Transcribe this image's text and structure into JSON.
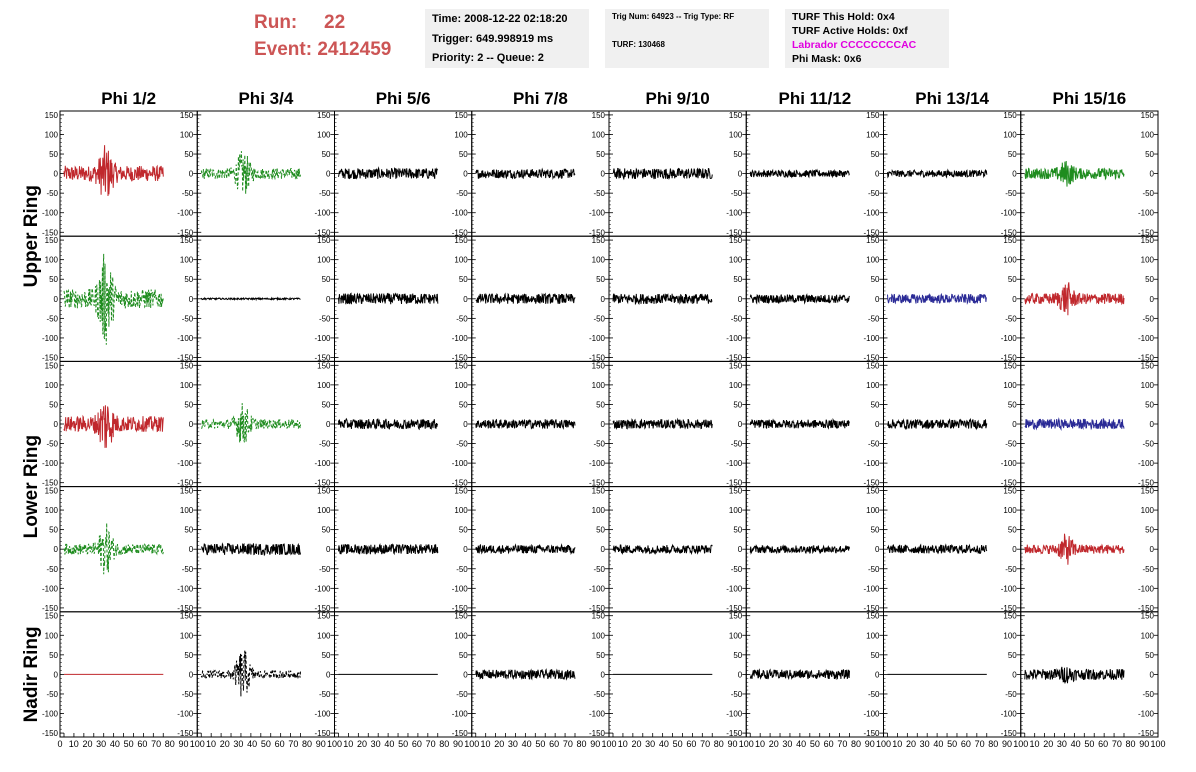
{
  "header": {
    "run_label": "Run:",
    "run_value": "22",
    "event_label": "Event:",
    "event_value": "2412459",
    "accent_color": "#cc5555"
  },
  "info1": {
    "time": "Time: 2008-12-22 02:18:20",
    "trigger": "Trigger: 649.998919 ms",
    "priority": "Priority: 2 -- Queue: 2"
  },
  "info2": {
    "trig": "Trig Num: 64923 -- Trig Type: RF",
    "turf": "TURF: 130468"
  },
  "info3": {
    "hold": "TURF This Hold: 0x4",
    "active": "TURF Active Holds: 0xf",
    "labrador": "Labrador CCCCCCCCAC",
    "mask": "Phi Mask: 0x6"
  },
  "columns": [
    "Phi 1/2",
    "Phi 3/4",
    "Phi 5/6",
    "Phi 7/8",
    "Phi 9/10",
    "Phi 11/12",
    "Phi 13/14",
    "Phi 15/16"
  ],
  "rings": [
    "Upper Ring",
    "Lower Ring",
    "Nadir Ring"
  ],
  "y_ticks": [
    "150",
    "100",
    "50",
    "0",
    "-50",
    "-100",
    "-150"
  ],
  "x_ticks_first": [
    "0",
    "10",
    "20",
    "30",
    "40",
    "50",
    "60",
    "70",
    "80",
    "90",
    "100"
  ],
  "x_ticks_other": [
    "10",
    "20",
    "30",
    "40",
    "50",
    "60",
    "70",
    "80",
    "90",
    "100"
  ],
  "colors": {
    "red": "#c0282d",
    "green": "#1e8c1e",
    "blue": "#2a2a96",
    "black": "#000000"
  },
  "chart_data": {
    "type": "line",
    "ylim": [
      -160,
      160
    ],
    "xlim": [
      0,
      100
    ],
    "panels": [
      [
        {
          "c": "red",
          "a": 20,
          "b": 55,
          "d": false
        },
        {
          "c": "green",
          "a": 14,
          "b": 48,
          "d": true
        },
        {
          "c": "black",
          "a": 14,
          "b": 0,
          "d": false
        },
        {
          "c": "black",
          "a": 12,
          "b": 0,
          "d": false
        },
        {
          "c": "black",
          "a": 14,
          "b": 0,
          "d": false
        },
        {
          "c": "black",
          "a": 9,
          "b": 0,
          "d": false
        },
        {
          "c": "black",
          "a": 9,
          "b": 0,
          "d": false
        },
        {
          "c": "green",
          "a": 14,
          "b": 22,
          "d": false
        }
      ],
      [
        {
          "c": "green",
          "a": 25,
          "b": 100,
          "d": true
        },
        {
          "c": "black",
          "a": 2,
          "b": 0,
          "d": false
        },
        {
          "c": "black",
          "a": 14,
          "b": 0,
          "d": false
        },
        {
          "c": "black",
          "a": 13,
          "b": 0,
          "d": false
        },
        {
          "c": "black",
          "a": 13,
          "b": 0,
          "d": false
        },
        {
          "c": "black",
          "a": 11,
          "b": 0,
          "d": false
        },
        {
          "c": "blue",
          "a": 12,
          "b": 0,
          "d": false
        },
        {
          "c": "red",
          "a": 14,
          "b": 32,
          "d": false
        }
      ],
      [
        {
          "c": "red",
          "a": 20,
          "b": 58,
          "d": false
        },
        {
          "c": "green",
          "a": 12,
          "b": 45,
          "d": true
        },
        {
          "c": "black",
          "a": 13,
          "b": 0,
          "d": false
        },
        {
          "c": "black",
          "a": 12,
          "b": 0,
          "d": false
        },
        {
          "c": "black",
          "a": 12,
          "b": 0,
          "d": false
        },
        {
          "c": "black",
          "a": 11,
          "b": 0,
          "d": false
        },
        {
          "c": "black",
          "a": 12,
          "b": 0,
          "d": false
        },
        {
          "c": "blue",
          "a": 13,
          "b": 0,
          "d": false
        }
      ],
      [
        {
          "c": "green",
          "a": 14,
          "b": 55,
          "d": true
        },
        {
          "c": "black",
          "a": 15,
          "b": 0,
          "d": false
        },
        {
          "c": "black",
          "a": 13,
          "b": 0,
          "d": false
        },
        {
          "c": "black",
          "a": 11,
          "b": 0,
          "d": false
        },
        {
          "c": "black",
          "a": 11,
          "b": 0,
          "d": false
        },
        {
          "c": "black",
          "a": 10,
          "b": 0,
          "d": false
        },
        {
          "c": "black",
          "a": 11,
          "b": 0,
          "d": false
        },
        {
          "c": "red",
          "a": 12,
          "b": 30,
          "d": false
        }
      ],
      [
        {
          "c": "red",
          "a": 0,
          "b": 0,
          "d": false
        },
        {
          "c": "black",
          "a": 10,
          "b": 58,
          "d": true
        },
        {
          "c": "black",
          "a": 0,
          "b": 0,
          "d": false
        },
        {
          "c": "black",
          "a": 12,
          "b": 0,
          "d": false
        },
        {
          "c": "black",
          "a": 0,
          "b": 0,
          "d": false
        },
        {
          "c": "black",
          "a": 12,
          "b": 0,
          "d": false
        },
        {
          "c": "black",
          "a": 0,
          "b": 0,
          "d": false
        },
        {
          "c": "black",
          "a": 14,
          "b": 10,
          "d": false
        }
      ]
    ]
  }
}
